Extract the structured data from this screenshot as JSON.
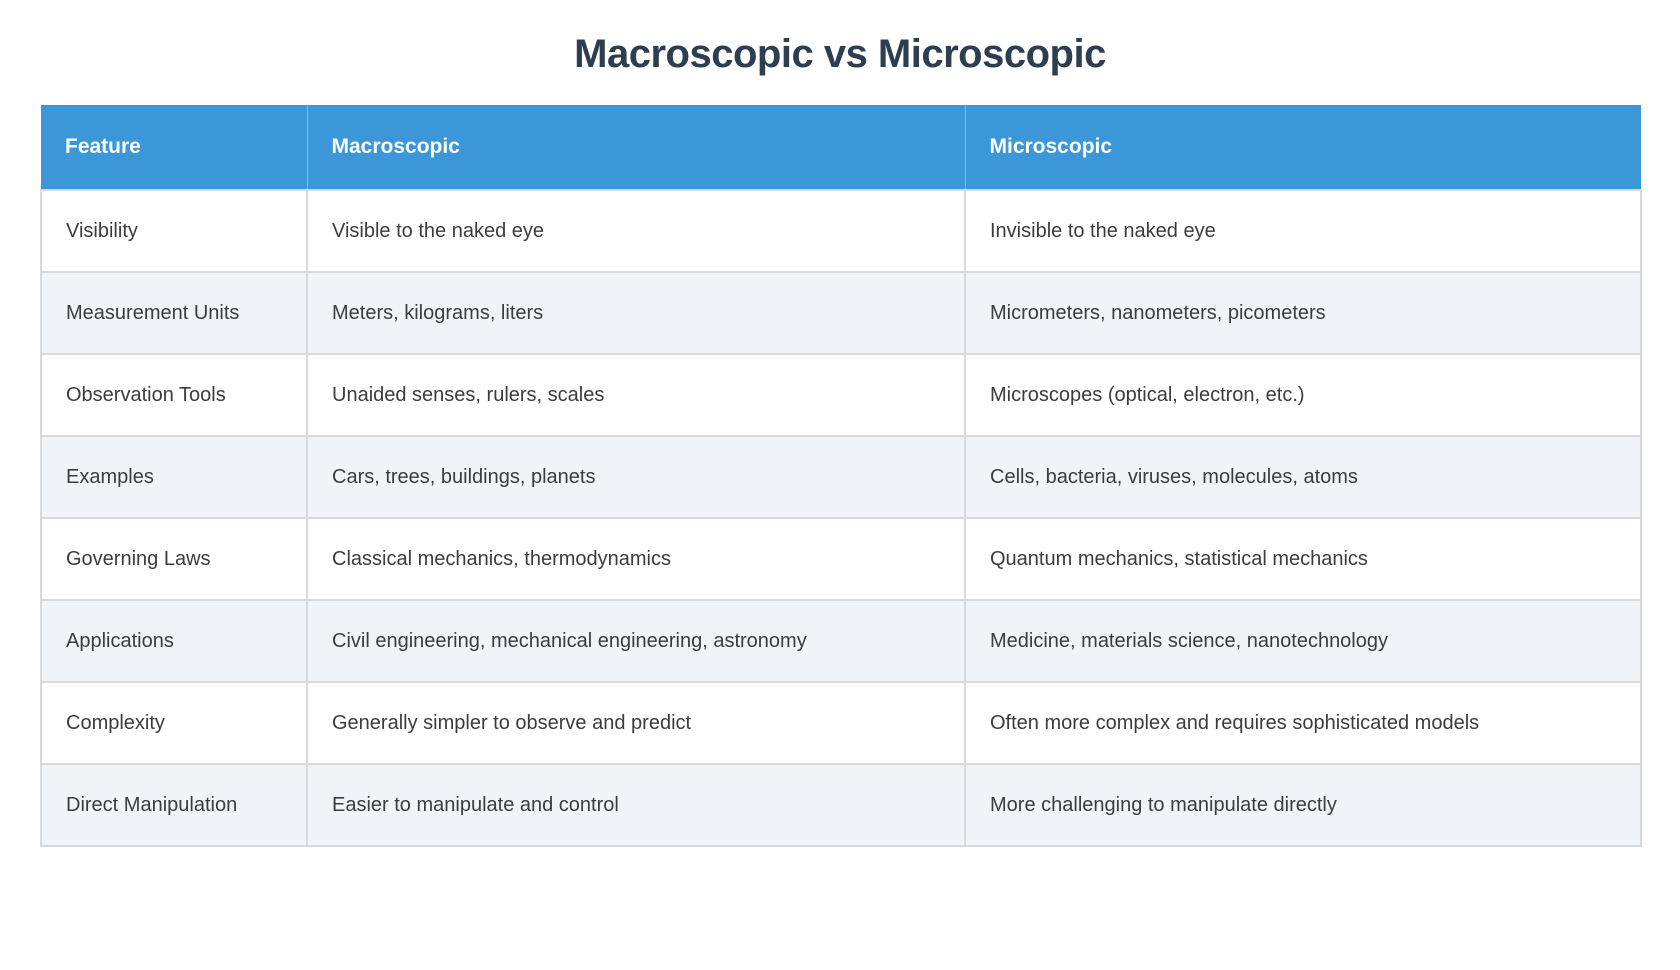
{
  "title": "Macroscopic vs Microscopic",
  "colors": {
    "header_bg": "#3b97d8",
    "header_text": "#ffffff",
    "row_bg": "#ffffff",
    "stripe_bg": "#f0f4f8",
    "border": "#d9d9d9",
    "title_text": "#2c3e50",
    "body_text": "#3c3c3c"
  },
  "table": {
    "headers": [
      "Feature",
      "Macroscopic",
      "Microscopic"
    ],
    "rows": [
      {
        "feature": "Visibility",
        "macroscopic": "Visible to the naked eye",
        "microscopic": "Invisible to the naked eye"
      },
      {
        "feature": "Measurement Units",
        "macroscopic": "Meters, kilograms, liters",
        "microscopic": "Micrometers, nanometers, picometers"
      },
      {
        "feature": "Observation Tools",
        "macroscopic": "Unaided senses, rulers, scales",
        "microscopic": "Microscopes (optical, electron, etc.)"
      },
      {
        "feature": "Examples",
        "macroscopic": "Cars, trees, buildings, planets",
        "microscopic": "Cells, bacteria, viruses, molecules, atoms"
      },
      {
        "feature": "Governing Laws",
        "macroscopic": "Classical mechanics, thermodynamics",
        "microscopic": "Quantum mechanics, statistical mechanics"
      },
      {
        "feature": "Applications",
        "macroscopic": "Civil engineering, mechanical engineering, astronomy",
        "microscopic": "Medicine, materials science, nanotechnology"
      },
      {
        "feature": "Complexity",
        "macroscopic": "Generally simpler to observe and predict",
        "microscopic": "Often more complex and requires sophisticated models"
      },
      {
        "feature": "Direct Manipulation",
        "macroscopic": "Easier to manipulate and control",
        "microscopic": "More challenging to manipulate directly"
      }
    ]
  }
}
